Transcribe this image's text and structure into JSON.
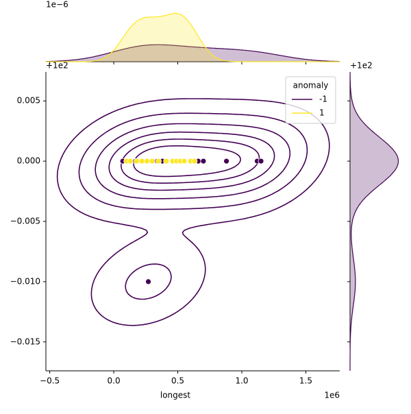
{
  "chart_data": {
    "type": "scatter",
    "xlabel": "longest",
    "x_offset_text": "1e6",
    "y_offset_text": "+1e2",
    "top_marginal_offset_text": "1e−6",
    "right_marginal_offset_text": "+1e2",
    "legend_title": "anomaly",
    "legend": "upper right",
    "xlim": [
      -0.53,
      1.765
    ],
    "ylim": [
      -0.0174,
      0.0074
    ],
    "xticks": [
      {
        "value": -0.5,
        "label": "−0.5"
      },
      {
        "value": 0,
        "label": "0.0"
      },
      0.5,
      {
        "value": 1,
        "label": "1.0"
      },
      1.5
    ],
    "yticks": [
      0.005,
      {
        "value": 0,
        "label": "0.000"
      },
      {
        "value": -0.005,
        "label": "−0.005"
      },
      {
        "value": -0.01,
        "label": "−0.010"
      },
      {
        "value": -0.015,
        "label": "−0.015"
      }
    ],
    "series": [
      {
        "name": "-1",
        "color": "#440154",
        "x": [
          0.07,
          0.17,
          0.34,
          0.38,
          0.66,
          0.7,
          0.88,
          1.12,
          1.15,
          0.27
        ],
        "y": [
          0,
          0,
          0,
          0,
          0,
          0,
          0,
          0,
          0,
          -0.01
        ]
      },
      {
        "name": "1",
        "color": "#fde725",
        "x": [
          0.1,
          0.13,
          0.18,
          0.22,
          0.26,
          0.3,
          0.35,
          0.41,
          0.46,
          0.49,
          0.52,
          0.55,
          0.6,
          0.63
        ],
        "y": [
          0,
          0,
          0,
          0,
          0,
          0,
          0,
          0,
          0,
          0,
          0,
          0,
          0,
          0
        ]
      }
    ]
  }
}
